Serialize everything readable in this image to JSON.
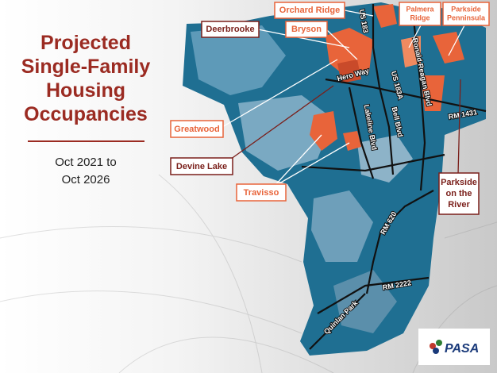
{
  "title": {
    "lines": [
      "Projected",
      "Single-Family",
      "Housing",
      "Occupancies"
    ]
  },
  "date": {
    "lines": [
      "Oct 2021 to",
      "Oct 2026"
    ]
  },
  "callouts": [
    {
      "lines": [
        "Orchard Ridge"
      ]
    },
    {
      "lines": [
        "Palmera",
        "Ridge"
      ]
    },
    {
      "lines": [
        "Parkside",
        "Penninsula"
      ]
    },
    {
      "lines": [
        "Deerbrooke"
      ]
    },
    {
      "lines": [
        "Bryson"
      ]
    },
    {
      "lines": [
        "Greatwood"
      ]
    },
    {
      "lines": [
        "Devine Lake"
      ]
    },
    {
      "lines": [
        "Travisso"
      ]
    },
    {
      "lines": [
        "Parkside",
        "on the",
        "River"
      ]
    }
  ],
  "roads": [
    "US 183",
    "Hero Way",
    "US 183A",
    "Ronald Reagan Blvd",
    "Lakeline Blvd",
    "Bell Blvd",
    "RM 1431",
    "RM 620",
    "RM 2222",
    "Quinlan Park"
  ],
  "logo": {
    "text": "PASA"
  }
}
